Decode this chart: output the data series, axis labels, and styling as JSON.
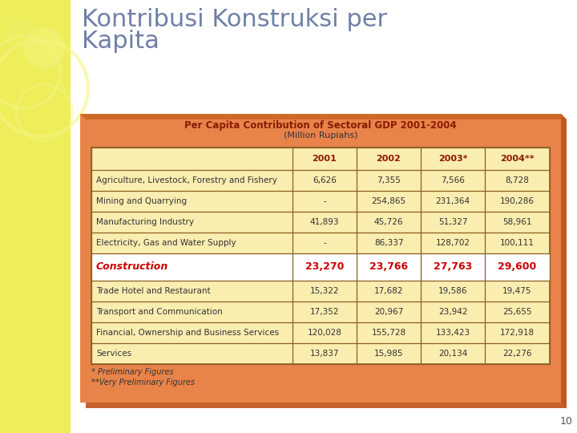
{
  "title_line1": "Kontribusi Konstruksi per",
  "title_line2": "Kapita",
  "table_title": "Per Capita Contribution of Sectoral GDP 2001-2004",
  "table_subtitle": "(Million Rupiahs)",
  "columns": [
    "",
    "2001",
    "2002",
    "2003*",
    "2004**"
  ],
  "rows": [
    [
      "Agriculture, Livestock, Forestry and Fishery",
      "6,626",
      "7,355",
      "7,566",
      "8,728"
    ],
    [
      "Mining and Quarrying",
      "-",
      "254,865",
      "231,364",
      "190,286"
    ],
    [
      "Manufacturing Industry",
      "41,893",
      "45,726",
      "51,327",
      "58,961"
    ],
    [
      "Electricity, Gas and Water Supply",
      "-",
      "86,337",
      "128,702",
      "100,111"
    ],
    [
      "Construction",
      "23,270",
      "23,766",
      "27,763",
      "29,600"
    ],
    [
      "Trade Hotel and Restaurant",
      "15,322",
      "17,682",
      "19,586",
      "19,475"
    ],
    [
      "Transport and Communication",
      "17,352",
      "20,967",
      "23,942",
      "25,655"
    ],
    [
      "Financial, Ownership and Business Services",
      "120,028",
      "155,728",
      "133,423",
      "172,918"
    ],
    [
      "Services",
      "13,837",
      "15,985",
      "20,134",
      "22,276"
    ]
  ],
  "construction_row_index": 4,
  "footnote1": "* Preliminary Figures",
  "footnote2": "**Very Preliminary Figures",
  "slide_bg": "#FFFFFF",
  "left_bg": "#EEED5A",
  "left_circle_color": "#F5F580",
  "box_bg_outer": "#E8834A",
  "box_3d_top": "#C86030",
  "box_3d_right": "#C86030",
  "box_bg_inner": "#FAEDB0",
  "title_color": "#7080A8",
  "table_title_color": "#8B1A00",
  "table_subtitle_color": "#333333",
  "header_text_color": "#8B1A00",
  "construction_text_color": "#CC0000",
  "normal_text_color": "#333333",
  "border_color": "#8B6020",
  "page_number": "10"
}
